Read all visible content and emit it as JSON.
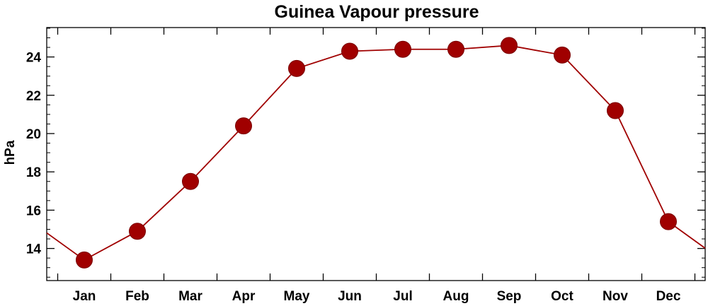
{
  "chart_data": {
    "type": "line",
    "title": "Guinea Vapour pressure",
    "ylabel": "hPa",
    "xlabel": "",
    "categories": [
      "Jan",
      "Feb",
      "Mar",
      "Apr",
      "May",
      "Jun",
      "Jul",
      "Aug",
      "Sep",
      "Oct",
      "Nov",
      "Dec"
    ],
    "values": [
      13.4,
      14.9,
      17.5,
      20.4,
      23.4,
      24.3,
      24.4,
      24.4,
      24.6,
      24.1,
      21.2,
      15.4
    ],
    "ylim": [
      12.3,
      25.6
    ],
    "yticks": [
      14,
      16,
      18,
      20,
      22,
      24
    ],
    "ytick_labels": [
      "14",
      "16",
      "18",
      "20",
      "22",
      "24"
    ],
    "grid": false,
    "line_color": "#a00000",
    "marker_color": "#a00000"
  }
}
